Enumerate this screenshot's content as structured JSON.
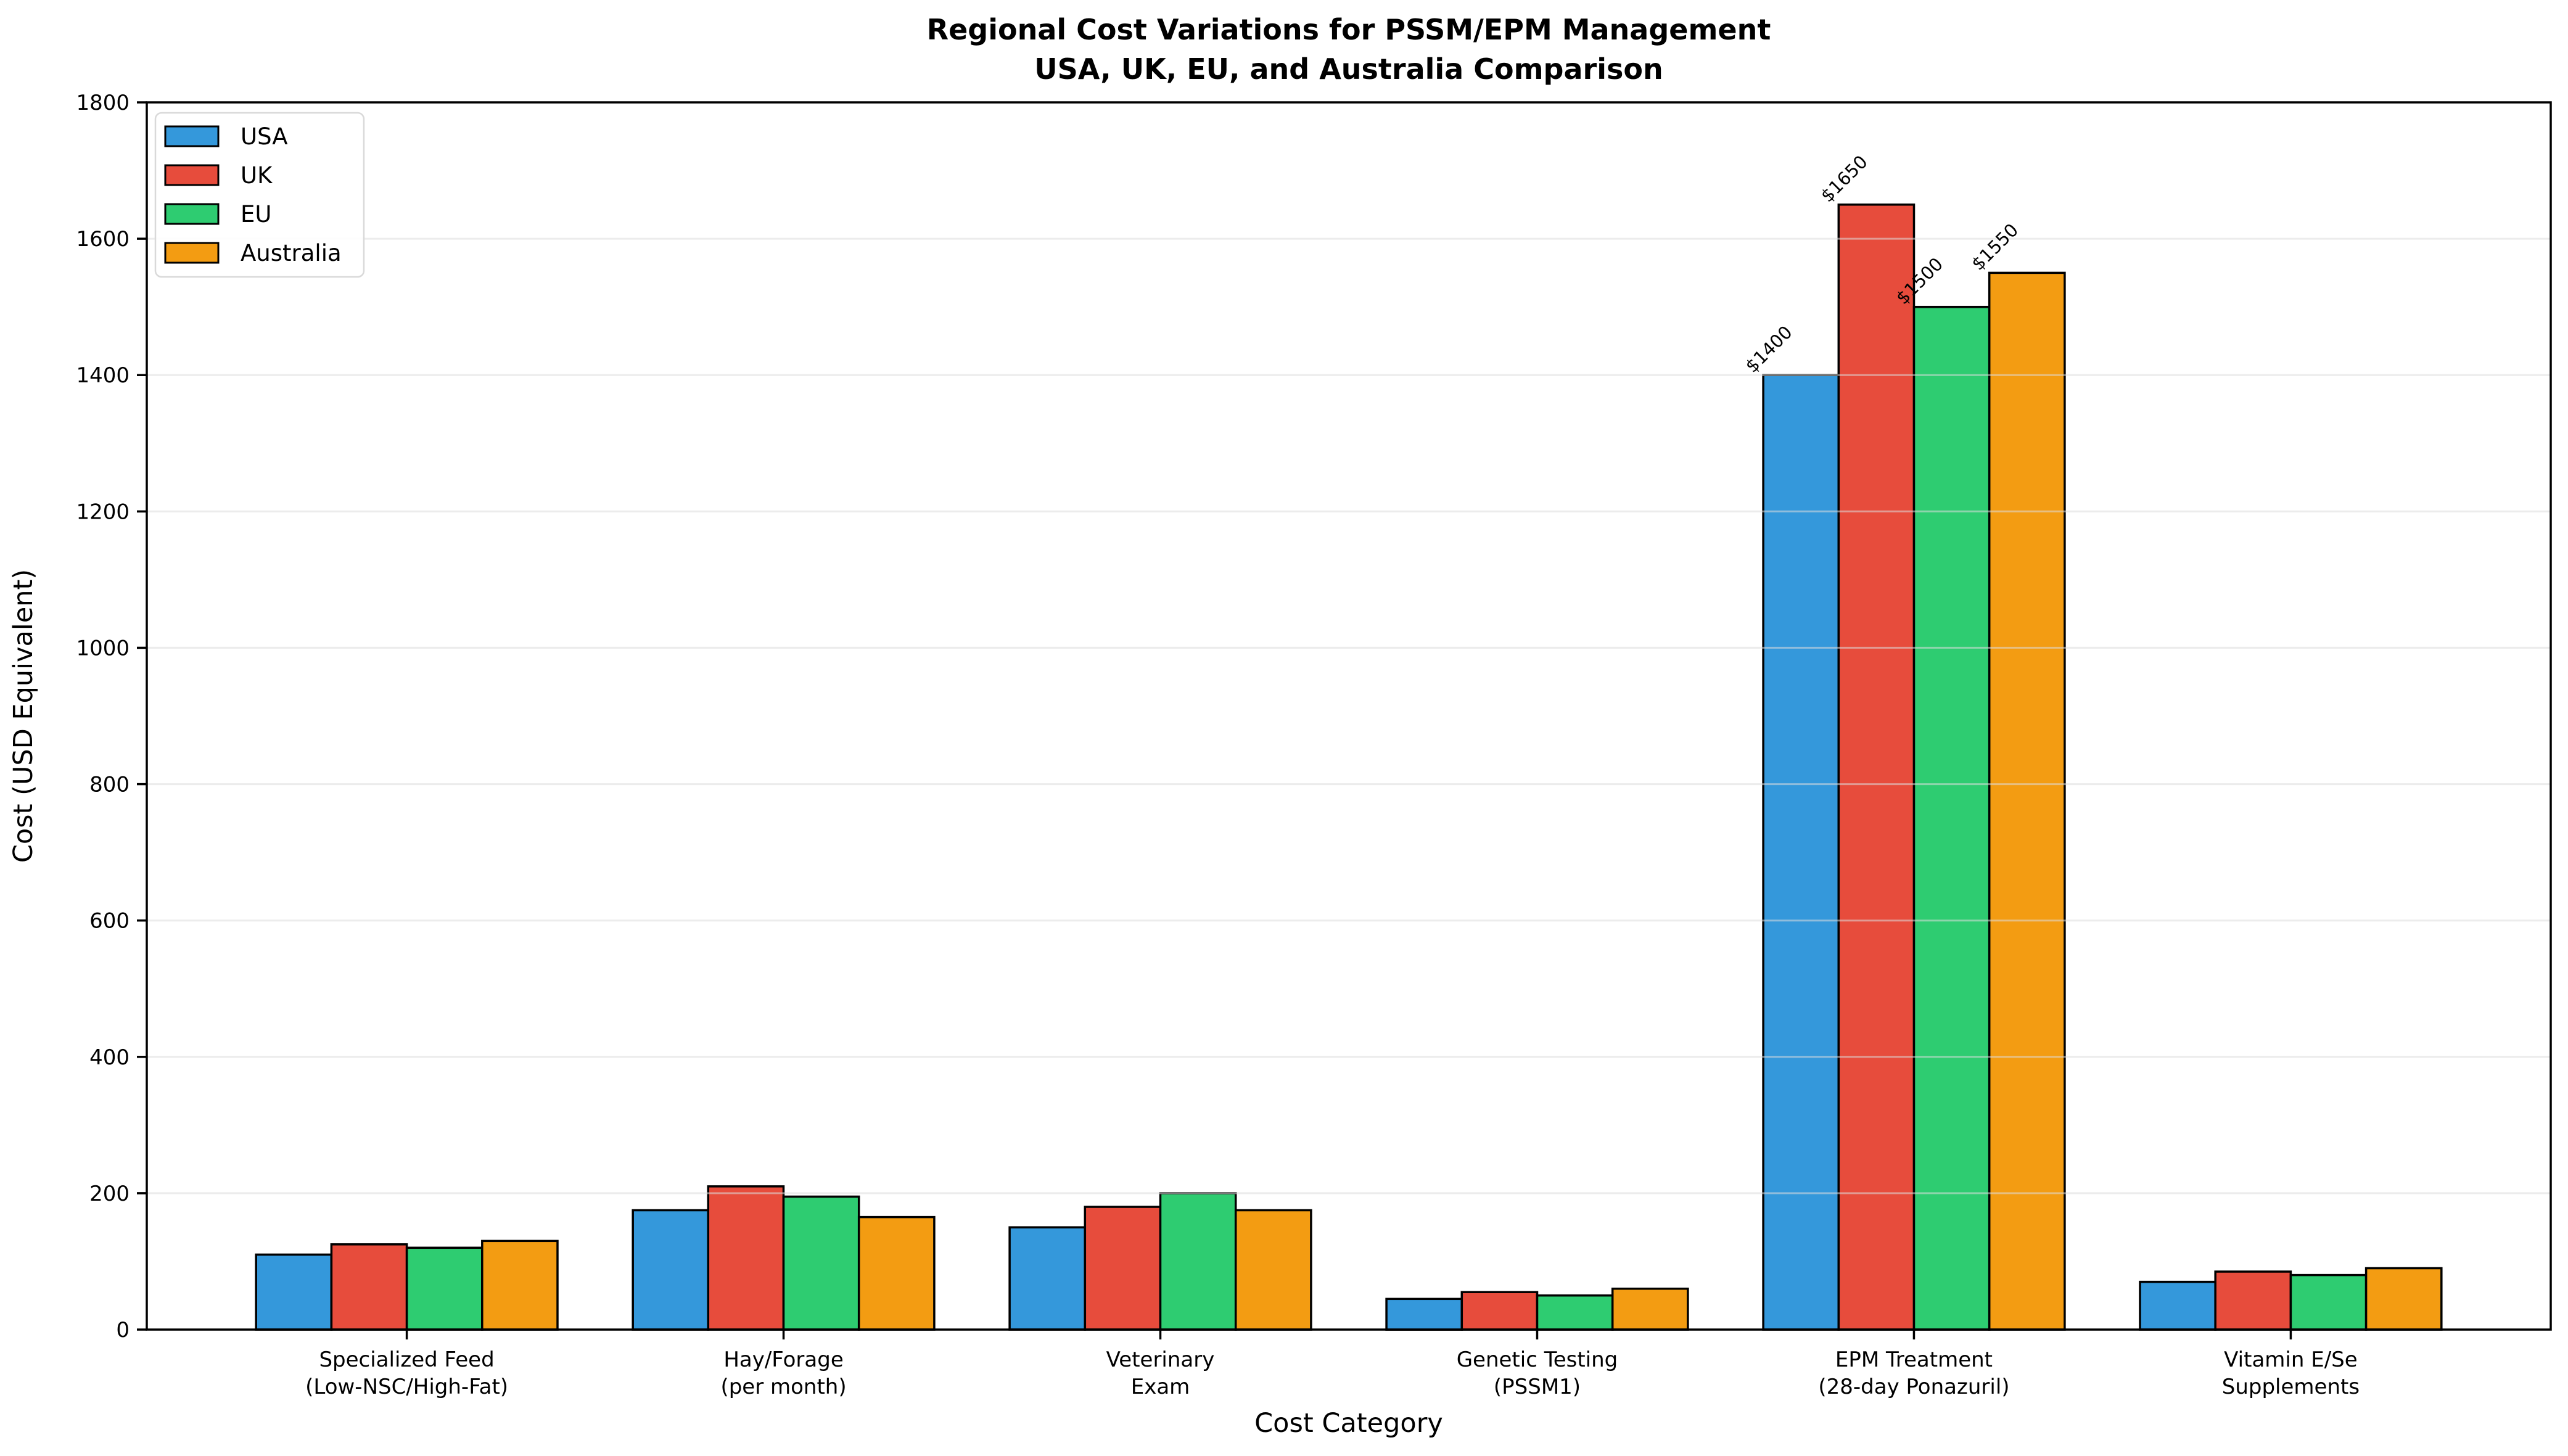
{
  "figure": {
    "background_color": "#ffffff",
    "plot_background_color": "#ffffff",
    "spine_color": "#000000"
  },
  "chart_data": {
    "type": "bar",
    "title": "Regional Cost Variations for PSSM/EPM Management",
    "subtitle": "USA, UK, EU, and Australia Comparison",
    "xlabel": "Cost Category",
    "ylabel": "Cost (USD Equivalent)",
    "categories": [
      [
        "Specialized Feed",
        "(Low-NSC/High-Fat)"
      ],
      [
        "Hay/Forage",
        "(per month)"
      ],
      [
        "Veterinary",
        "Exam"
      ],
      [
        "Genetic Testing",
        "(PSSM1)"
      ],
      [
        "EPM Treatment",
        "(28-day Ponazuril)"
      ],
      [
        "Vitamin E/Se",
        "Supplements"
      ]
    ],
    "series": [
      {
        "name": "USA",
        "color": "#3498db",
        "values": [
          110,
          175,
          150,
          45,
          1400,
          70
        ]
      },
      {
        "name": "UK",
        "color": "#e74c3c",
        "values": [
          125,
          210,
          180,
          55,
          1650,
          85
        ]
      },
      {
        "name": "EU",
        "color": "#2ecc71",
        "values": [
          120,
          195,
          200,
          50,
          1500,
          80
        ]
      },
      {
        "name": "Australia",
        "color": "#f39c12",
        "values": [
          130,
          165,
          175,
          60,
          1550,
          90
        ]
      }
    ],
    "bar_edge_color": "#000000",
    "ylim": [
      0,
      1800
    ],
    "yticks": [
      0,
      200,
      400,
      600,
      800,
      1000,
      1200,
      1400,
      1600,
      1800
    ],
    "grid": true,
    "grid_color": "#dcdcdc",
    "legend_position": "upper left",
    "annotations": {
      "category_index": 4,
      "labels": [
        "$1400",
        "$1650",
        "$1500",
        "$1550"
      ],
      "rotation_deg": -45
    }
  }
}
